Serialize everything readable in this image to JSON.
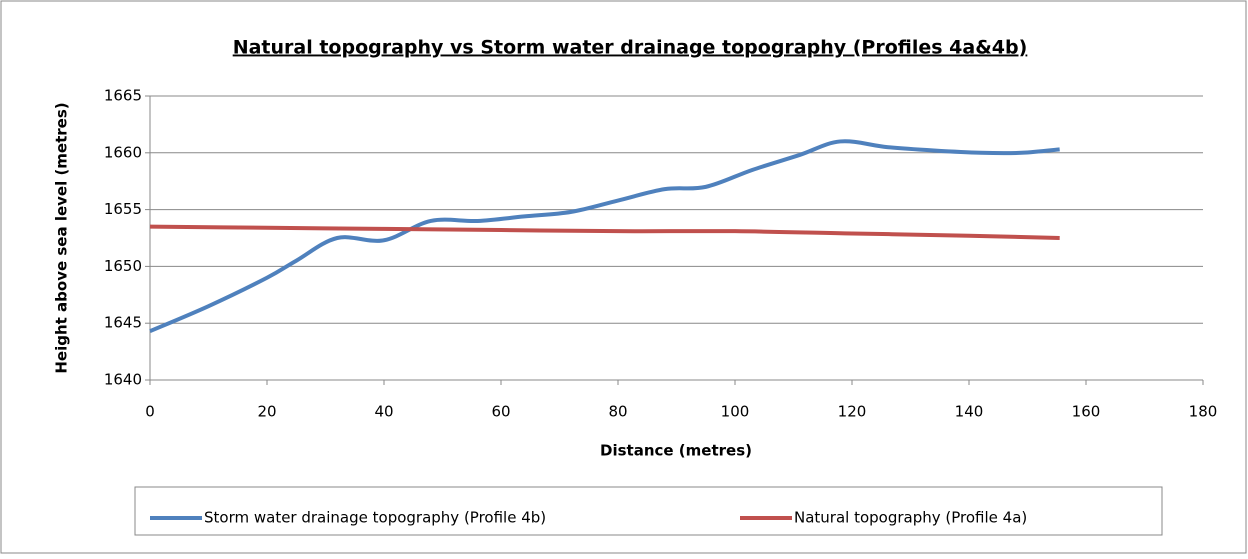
{
  "chart_data": {
    "type": "line",
    "title": "Natural topography vs Storm water drainage topography (Profiles 4a&4b)",
    "xlabel": "Distance (metres)",
    "ylabel": "Height above sea level (metres)",
    "series": [
      {
        "name": "Storm water drainage topography (Profile 4b)",
        "color": "#4f81bd",
        "x": [
          0,
          10,
          20,
          25,
          32,
          40,
          48,
          56,
          64,
          72,
          80,
          88,
          95,
          103,
          111,
          118,
          126,
          134,
          142,
          149,
          155.5
        ],
        "values": [
          1644.3,
          1646.5,
          1649,
          1650.5,
          1652.5,
          1652.3,
          1654,
          1654,
          1654.4,
          1654.8,
          1655.8,
          1656.8,
          1657,
          1658.5,
          1659.8,
          1661,
          1660.5,
          1660.2,
          1660,
          1660,
          1660.3
        ]
      },
      {
        "name": "Natural topography (Profile 4a)",
        "color": "#c0504d",
        "x": [
          0,
          20,
          40,
          60,
          80,
          100,
          120,
          140,
          155.5
        ],
        "values": [
          1653.5,
          1653.4,
          1653.3,
          1653.2,
          1653.1,
          1653.1,
          1652.9,
          1652.7,
          1652.5
        ]
      }
    ],
    "xlim": [
      0,
      180
    ],
    "xticks": [
      0,
      20,
      40,
      60,
      80,
      100,
      120,
      140,
      160,
      180
    ],
    "ylim": [
      1640,
      1665
    ],
    "yticks": [
      1640,
      1645,
      1650,
      1655,
      1660,
      1665
    ],
    "grid": true,
    "legend": "bottom"
  }
}
